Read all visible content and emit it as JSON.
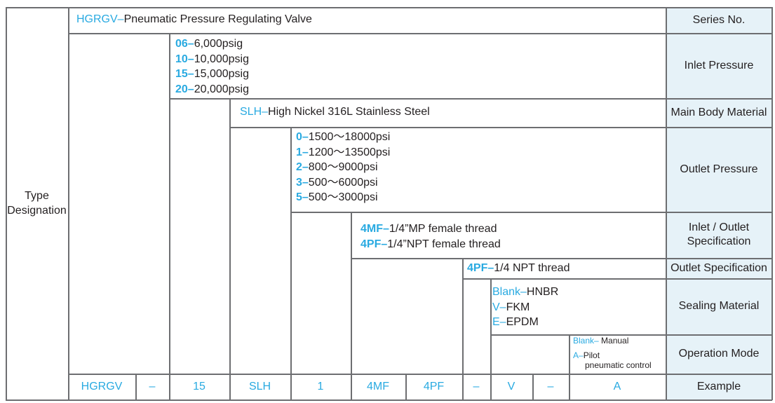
{
  "colors": {
    "code": "#29aae1",
    "text": "#231f20",
    "label_bg": "#e6f2f8",
    "border": "#6d6e71"
  },
  "left_label": "Type Designation",
  "series": {
    "code": "HGRGV–",
    "text": "Pneumatic Pressure Regulating Valve",
    "label": "Series No."
  },
  "inlet": {
    "label": "Inlet Pressure",
    "items": [
      {
        "code": "06–",
        "text": "6,000psig"
      },
      {
        "code": "10–",
        "text": "10,000psig"
      },
      {
        "code": "15–",
        "text": "15,000psig"
      },
      {
        "code": "20–",
        "text": "20,000psig"
      }
    ]
  },
  "body": {
    "code": "SLH–",
    "text": "High Nickel 316L Stainless Steel",
    "label": "Main Body Material"
  },
  "outlet": {
    "label": "Outlet Pressure",
    "items": [
      {
        "code": "0–",
        "text": "1500～18000psi"
      },
      {
        "code": "1–",
        "text": "1200～13500psi"
      },
      {
        "code": "2–",
        "text": "800～9000psi"
      },
      {
        "code": "3–",
        "text": "500～6000psi"
      },
      {
        "code": "5–",
        "text": "500～3000psi"
      }
    ]
  },
  "inout": {
    "label": "Inlet / Outlet Specification",
    "items": [
      {
        "code": "4MF–",
        "text": "1/4”MP female thread"
      },
      {
        "code": "4PF–",
        "text": "1/4”NPT female thread"
      }
    ]
  },
  "outspec": {
    "code": "4PF–",
    "text": "1/4 NPT thread",
    "label": "Outlet Specification"
  },
  "seal": {
    "label": "Sealing Material",
    "items": [
      {
        "code": "Blank–",
        "text": "HNBR"
      },
      {
        "code": "V–",
        "text": "FKM"
      },
      {
        "code": "E–",
        "text": "EPDM"
      }
    ]
  },
  "mode": {
    "label": "Operation Mode",
    "items": [
      {
        "code": "Blank–",
        "text": " Manual"
      },
      {
        "code": "A–",
        "text": "Pilot",
        "text2": "pneumatic control"
      }
    ]
  },
  "example": {
    "label": "Example",
    "values": [
      "HGRGV",
      "–",
      "15",
      "SLH",
      "1",
      "4MF",
      "4PF",
      "–",
      "V",
      "–",
      "A"
    ]
  }
}
